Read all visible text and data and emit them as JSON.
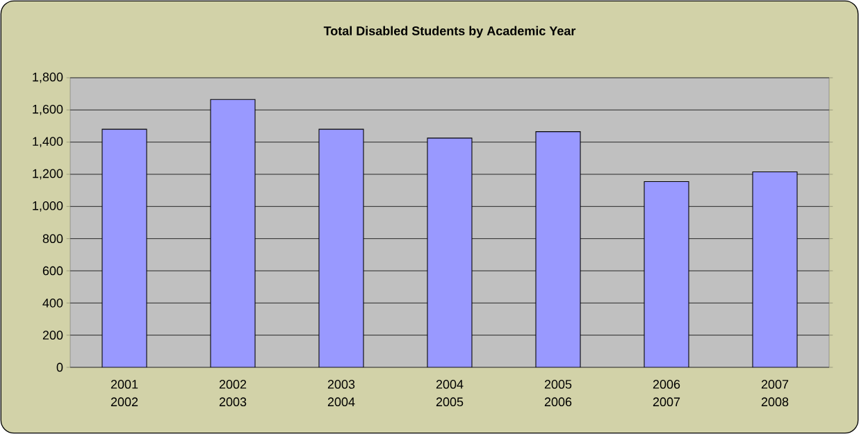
{
  "chart_data": {
    "type": "bar",
    "title": "Total Disabled Students by Academic Year",
    "categories": [
      "2001 2002",
      "2002 2003",
      "2003 2004",
      "2004 2005",
      "2005 2006",
      "2006 2007",
      "2007 2008"
    ],
    "values": [
      1480,
      1665,
      1480,
      1425,
      1465,
      1155,
      1215
    ],
    "color": "#9999ff",
    "ylim": [
      0,
      1800
    ],
    "yticks": [
      {
        "value": 0,
        "label": "0"
      },
      {
        "value": 200,
        "label": "200"
      },
      {
        "value": 400,
        "label": "400"
      },
      {
        "value": 600,
        "label": "600"
      },
      {
        "value": 800,
        "label": "800"
      },
      {
        "value": 1000,
        "label": "1,000"
      },
      {
        "value": 1200,
        "label": "1,200"
      },
      {
        "value": 1400,
        "label": "1,400"
      },
      {
        "value": 1600,
        "label": "1,600"
      },
      {
        "value": 1800,
        "label": "1,800"
      }
    ],
    "grid": "y"
  }
}
